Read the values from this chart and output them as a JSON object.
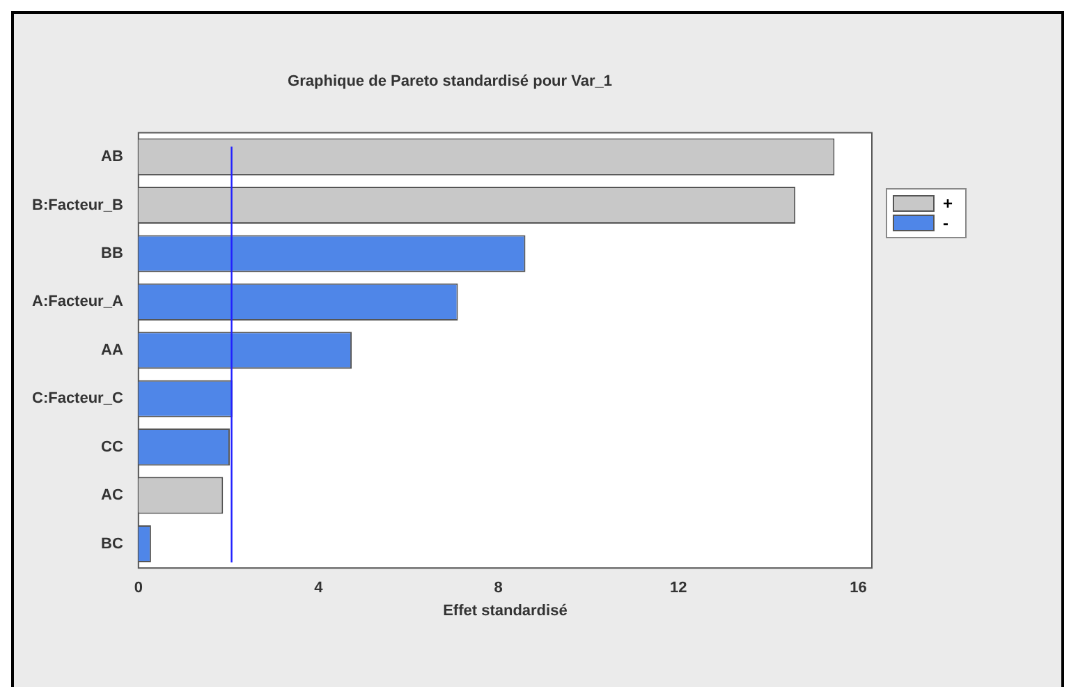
{
  "chart_data": {
    "type": "bar",
    "orientation": "horizontal",
    "title": "Graphique de Pareto standardisé pour Var_1",
    "xlabel": "Effet standardisé",
    "categories": [
      "AB",
      "B:Facteur_B",
      "BB",
      "A:Facteur_A",
      "AA",
      "C:Facteur_C",
      "CC",
      "AC",
      "BC"
    ],
    "series": [
      {
        "name": "+",
        "color": "#c8c8c8",
        "values": [
          15.47,
          14.6,
          null,
          null,
          null,
          null,
          null,
          1.88,
          null
        ]
      },
      {
        "name": "-",
        "color": "#4f86e8",
        "values": [
          null,
          null,
          8.6,
          7.1,
          4.74,
          2.09,
          2.03,
          null,
          0.28
        ]
      }
    ],
    "xlim": [
      0,
      16.3
    ],
    "xticks": [
      0,
      4,
      8,
      12,
      16
    ],
    "ref_lines": [
      {
        "axis": "x",
        "value": 2.07,
        "color": "#2020ff"
      }
    ],
    "grid": false,
    "legend": "top right"
  }
}
